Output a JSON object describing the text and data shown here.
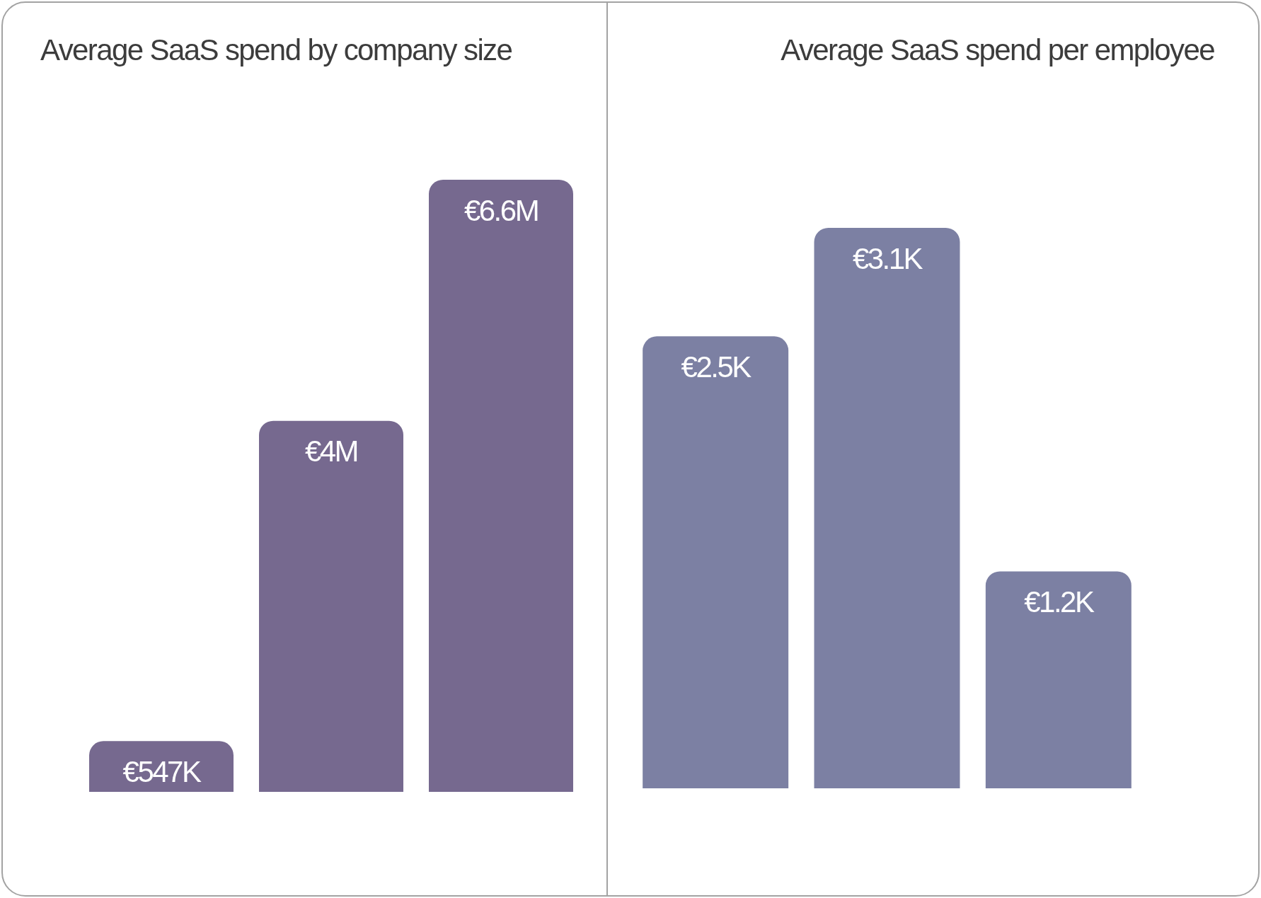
{
  "chart_data": [
    {
      "type": "bar",
      "title": "Average SaaS spend by company size",
      "categories": [
        null,
        null,
        null
      ],
      "values": [
        547000,
        4000000,
        6600000
      ],
      "value_labels": [
        "€547K",
        "€4M",
        "€6.6M"
      ],
      "color": "#76698f",
      "tick_labels": false
    },
    {
      "type": "bar",
      "title": "Average SaaS spend per employee",
      "categories": [
        null,
        null,
        null
      ],
      "values": [
        2500,
        3100,
        1200
      ],
      "value_labels": [
        "€2.5K",
        "€3.1K",
        "€1.2K"
      ],
      "color": "#7c80a3",
      "tick_labels": false
    }
  ]
}
